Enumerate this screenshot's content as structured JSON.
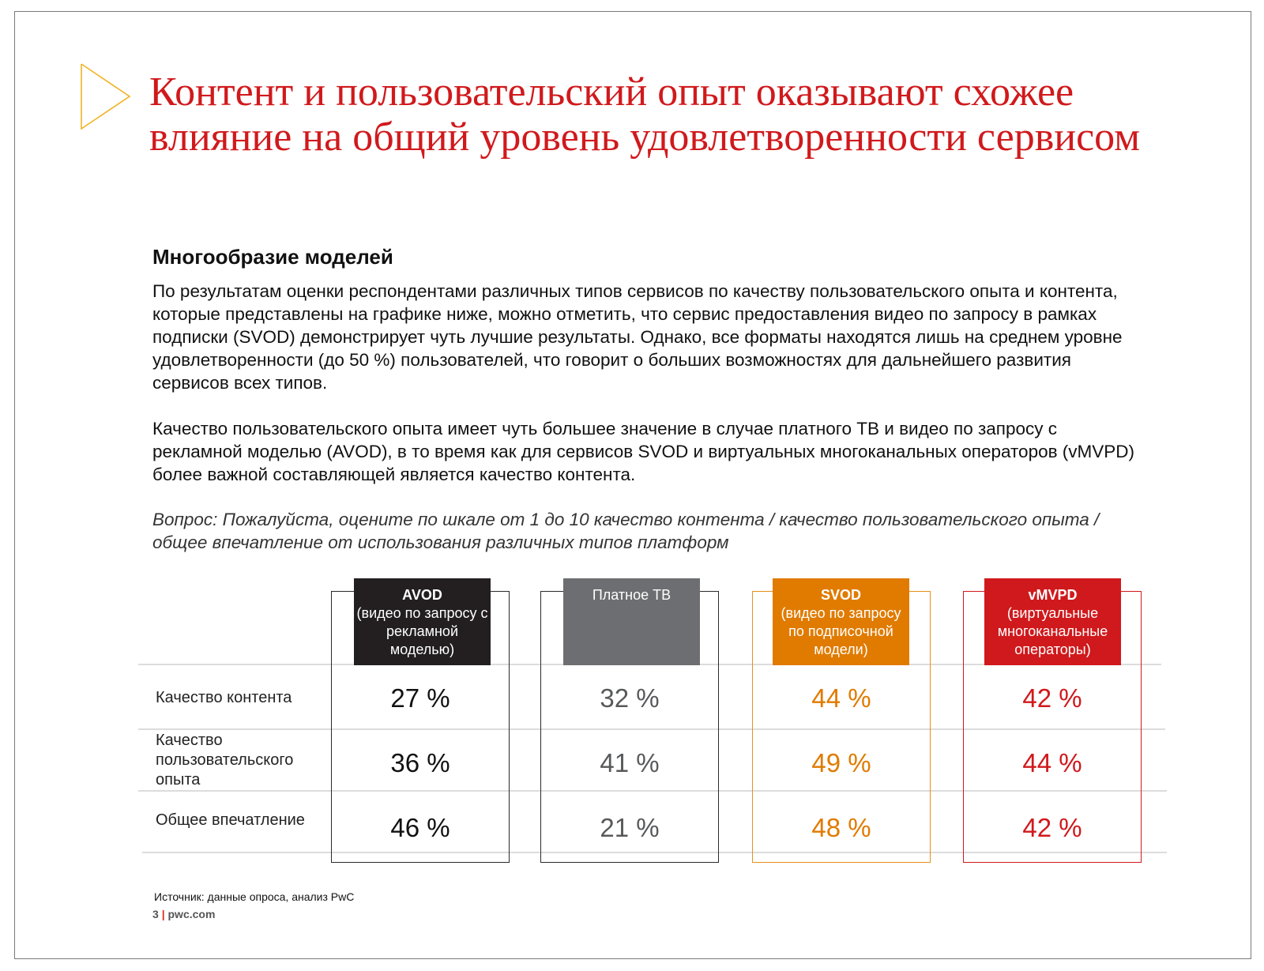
{
  "title": "Контент и пользовательский опыт оказывают схожее влияние на общий уровень удовлетворенности сервисом",
  "subheading": "Многообразие моделей",
  "paragraphs": [
    "По результатам оценки респондентами различных типов сервисов по качеству пользовательского опыта и контента, которые представлены на графике ниже, можно отметить, что сервис предоставления видео по запросу в рамках подписки (SVOD) демонстрирует чуть лучшие результаты. Однако, все форматы находятся лишь на среднем уровне удовлетворенности (до 50 %) пользователей, что говорит о больших возможностях для дальнейшего развития сервисов всех типов.",
    "Качество пользовательского опыта имеет чуть большее значение в случае платного ТВ и видео по запросу с рекламной моделью (AVOD), в то время как для сервисов SVOD и виртуальных многоканальных операторов (vMVPD) более важной составляющей является качество контента."
  ],
  "question": "Вопрос: Пожалуйста, оцените по шкале от 1 до 10 качество контента / качество пользовательского опыта / общее впечатление от использования различных типов платформ",
  "table": {
    "rows": [
      "Качество контента",
      "Качество пользовательского опыта",
      "Общее впечатление"
    ],
    "columns": [
      {
        "name": "AVOD",
        "subtitle": "(видео по запросу с рекламной моделью)",
        "color": "#231f20",
        "text_color": "#111111",
        "border": "#2a2a2a",
        "values": [
          "27 %",
          "36 %",
          "46 %"
        ]
      },
      {
        "name": "Платное ТВ",
        "subtitle": "",
        "color": "#6d6e71",
        "text_color": "#58595b",
        "border": "#2a2a2a",
        "values": [
          "32 %",
          "41 %",
          "21 %"
        ]
      },
      {
        "name": "SVOD",
        "subtitle": "(видео по запросу по подписочной модели)",
        "color": "#e07b00",
        "text_color": "#e07b00",
        "border": "#e88f1a",
        "values": [
          "44 %",
          "49 %",
          "48 %"
        ]
      },
      {
        "name": "vMVPD",
        "subtitle": "(виртуальные многоканальные операторы)",
        "color": "#d0191c",
        "text_color": "#d0191c",
        "border": "#d0191c",
        "values": [
          "42 %",
          "44 %",
          "42 %"
        ]
      }
    ]
  },
  "source": "Источник: данные опроса, анализ PwC",
  "footer": {
    "page": "3",
    "separator": "|",
    "site": "pwc.com"
  },
  "colors": {
    "accent": "#d0191c",
    "chevron": "#f0b323"
  }
}
